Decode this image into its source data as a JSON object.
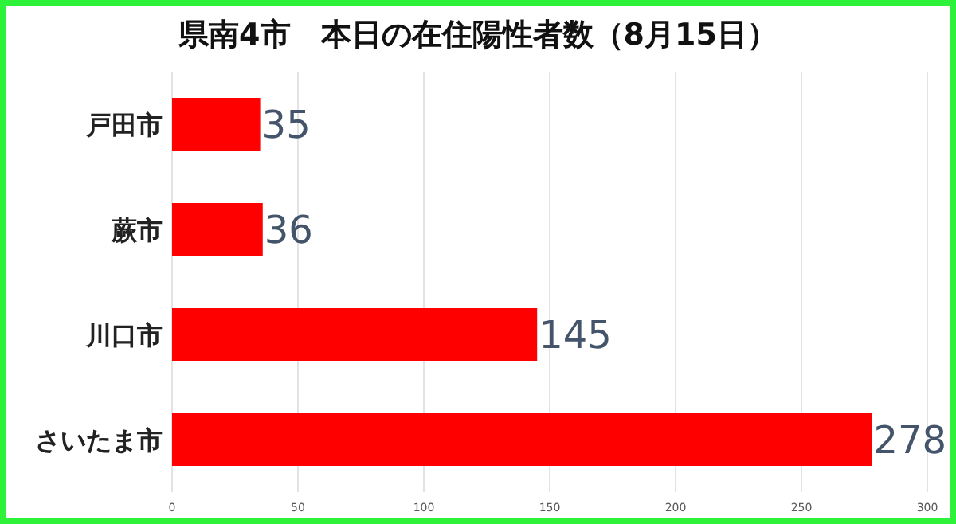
{
  "chart_data": {
    "type": "bar",
    "orientation": "horizontal",
    "title": "県南4市　本日の在住陽性者数（8月15日）",
    "categories": [
      "戸田市",
      "蕨市",
      "川口市",
      "さいたま市"
    ],
    "values": [
      35,
      36,
      145,
      278
    ],
    "color": "#ff0000",
    "xlim": [
      0,
      300
    ],
    "xticks": [
      0,
      50,
      100,
      150,
      200,
      250,
      300
    ],
    "grid": "x",
    "data_labels": true
  }
}
